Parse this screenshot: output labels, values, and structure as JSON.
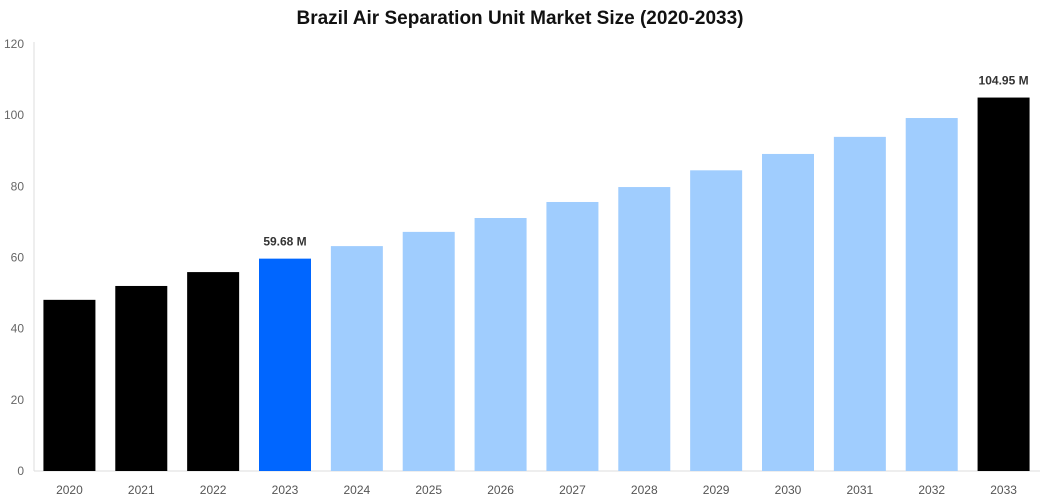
{
  "chart_data": {
    "type": "bar",
    "title": "Brazil Air Separation Unit Market Size (2020-2033)",
    "xlabel": "",
    "ylabel": "",
    "ylim": [
      0,
      120
    ],
    "yticks": [
      0,
      20,
      40,
      60,
      80,
      100,
      120
    ],
    "grid": false,
    "categories": [
      "2020",
      "2021",
      "2022",
      "2023",
      "2024",
      "2025",
      "2026",
      "2027",
      "2028",
      "2029",
      "2030",
      "2031",
      "2032",
      "2033"
    ],
    "values": [
      48.1,
      52.0,
      55.9,
      59.68,
      63.2,
      67.2,
      71.1,
      75.6,
      79.8,
      84.5,
      89.1,
      93.9,
      99.2,
      104.95
    ],
    "colors": [
      "#000000",
      "#000000",
      "#000000",
      "#0066ff",
      "#a0cdfe",
      "#a0cdfe",
      "#a0cdfe",
      "#a0cdfe",
      "#a0cdfe",
      "#a0cdfe",
      "#a0cdfe",
      "#a0cdfe",
      "#a0cdfe",
      "#000000"
    ],
    "data_labels": {
      "3": "59.68 M",
      "13": "104.95 M"
    }
  }
}
